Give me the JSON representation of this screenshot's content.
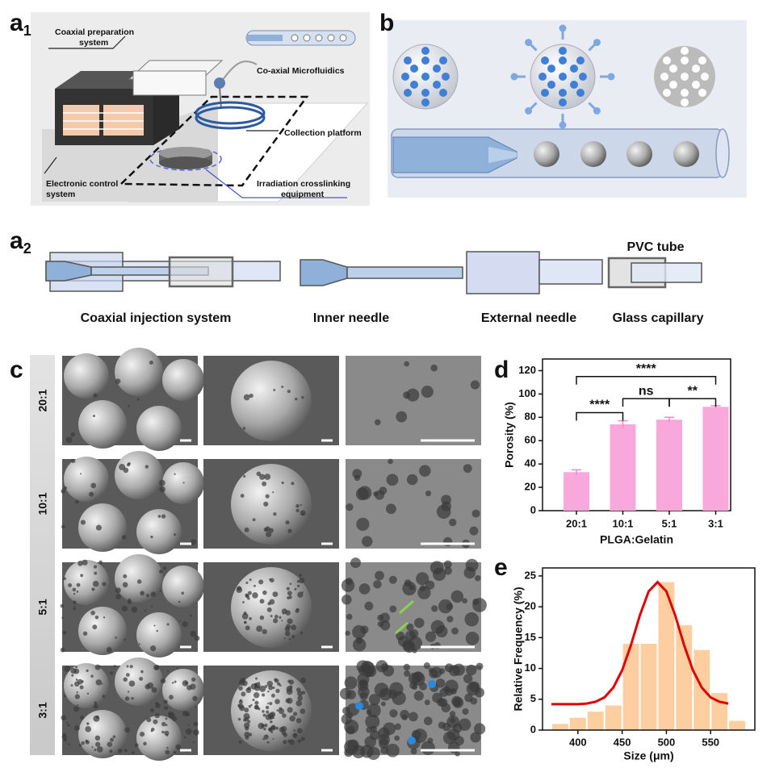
{
  "panel_labels": [
    {
      "letter": "a",
      "sub": "1"
    },
    {
      "letter": "b"
    },
    {
      "letter": "a",
      "sub": "2"
    },
    {
      "letter": "c"
    },
    {
      "letter": "d"
    },
    {
      "letter": "e"
    }
  ],
  "a1": {
    "labels": [
      {
        "lines": [
          "Coaxial preparation",
          "system"
        ]
      },
      {
        "lines": [
          "Co-axial Microfluidics"
        ]
      },
      {
        "lines": [
          "Collection platform"
        ]
      },
      {
        "lines": [
          "Electronic control",
          "system"
        ]
      },
      {
        "lines": [
          "Irradiation crosslinking",
          "equipment"
        ]
      }
    ]
  },
  "a2": {
    "pvc_label": "PVC tube",
    "captions": [
      "Coaxial injection system",
      "Inner needle",
      "External needle",
      "Glass capillary"
    ]
  },
  "c": {
    "rows": [
      "20:1",
      "10:1",
      "5:1",
      "3:1"
    ]
  },
  "chart_data": [
    {
      "type": "bar",
      "y_label": "Porosity (%)",
      "x_label": "PLGA:Gelatin",
      "categories": [
        "20:1",
        "10:1",
        "5:1",
        "3:1"
      ],
      "values": [
        33,
        74,
        78,
        89
      ],
      "errors": [
        2,
        3,
        2,
        1
      ],
      "color": "#f9a8dc",
      "ylim": [
        0,
        130
      ],
      "yticks": [
        0,
        20,
        40,
        60,
        80,
        100,
        120
      ],
      "significance": [
        {
          "label": "****",
          "between": [
            "20:1",
            "3:1"
          ]
        },
        {
          "label": "****",
          "between": [
            "20:1",
            "10:1"
          ]
        },
        {
          "label": "ns",
          "between": [
            "10:1",
            "5:1"
          ]
        },
        {
          "label": "**",
          "between": [
            "5:1",
            "3:1"
          ]
        }
      ]
    },
    {
      "type": "histogram",
      "y_label": "Relative Frequency (%)",
      "x_label": "Size (μm)",
      "bins": [
        370,
        390,
        410,
        430,
        450,
        470,
        490,
        510,
        530,
        550,
        570,
        590
      ],
      "values": [
        1,
        2,
        3,
        4,
        14,
        14,
        24,
        17,
        13,
        6,
        1.5
      ],
      "color": "#fdcfa0",
      "fit": {
        "color": "#e00000",
        "x": [
          370,
          380,
          390,
          400,
          410,
          420,
          430,
          440,
          450,
          460,
          470,
          480,
          490,
          500,
          510,
          520,
          530,
          540,
          550,
          560,
          570
        ],
        "values": [
          4.2,
          4.2,
          4.2,
          4.2,
          4.3,
          4.6,
          5.3,
          6.9,
          9.7,
          13.8,
          18.6,
          22.5,
          24.0,
          22.5,
          18.6,
          13.8,
          9.7,
          6.9,
          5.3,
          4.6,
          4.3
        ]
      },
      "xlim": [
        360,
        600
      ],
      "xticks": [
        400,
        450,
        500,
        550
      ],
      "ylim": [
        0,
        26.3
      ],
      "yticks": [
        0,
        5,
        10,
        15,
        20,
        25
      ]
    }
  ]
}
